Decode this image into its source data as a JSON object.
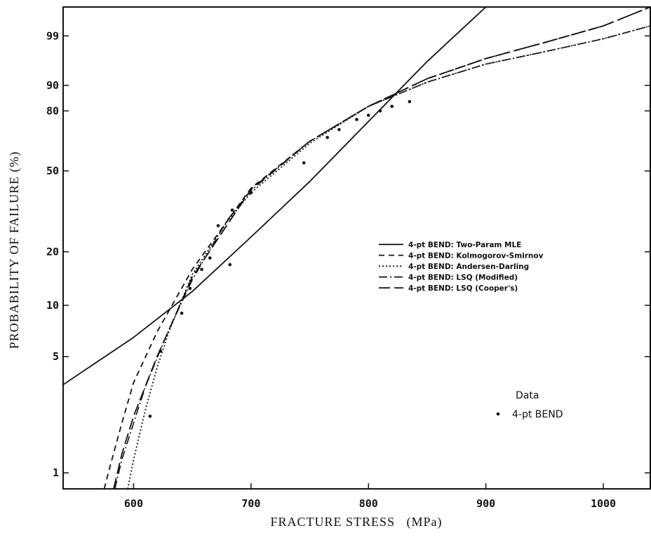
{
  "chart_data": {
    "type": "line",
    "title": "",
    "xlabel": "FRACTURE STRESS   (MPa)",
    "ylabel": "PROBABILITY OF FAILURE (%)",
    "xlim": [
      540,
      1040
    ],
    "ylim": [
      0.8,
      99.9
    ],
    "yscale": "weibull",
    "x_ticks": [
      600,
      700,
      800,
      900,
      1000
    ],
    "y_ticks": [
      1,
      5,
      10,
      20,
      50,
      80,
      90,
      99
    ],
    "y_tick_labels": [
      "1",
      "5",
      "10",
      "20",
      "50",
      "80",
      "90",
      "99"
    ],
    "grid": false,
    "legend_position": "center-right",
    "series": [
      {
        "name": "4-pt BEND: Two-Param MLE",
        "style": "solid",
        "x": [
          540,
          600,
          650,
          700,
          750,
          800,
          850,
          900,
          950
        ],
        "y": [
          3.4,
          6.5,
          12.0,
          24.0,
          45.0,
          75.0,
          96.0,
          99.9,
          99.95
        ]
      },
      {
        "name": "4-pt BEND: Kolmogorov-Smirnov",
        "style": "dashed",
        "x": [
          575,
          580,
          590,
          600,
          620,
          650,
          700,
          750,
          800,
          850,
          900,
          950,
          1000,
          1040
        ],
        "y": [
          0.8,
          1.1,
          2.0,
          3.5,
          7.0,
          16.0,
          42.0,
          65.0,
          82.0,
          92.0,
          96.5,
          98.5,
          99.5,
          99.9
        ]
      },
      {
        "name": "4-pt BEND: Andersen-Darling",
        "style": "dotted",
        "x": [
          595,
          600,
          610,
          620,
          630,
          650,
          680,
          700,
          750,
          800,
          850,
          900,
          950,
          1000,
          1040
        ],
        "y": [
          0.8,
          1.2,
          2.4,
          4.3,
          7.0,
          15.0,
          29.0,
          40.0,
          64.0,
          82.0,
          91.0,
          95.5,
          97.5,
          98.8,
          99.5
        ]
      },
      {
        "name": "4-pt BEND: LSQ (Modified)",
        "style": "dash-dot",
        "x": [
          584,
          590,
          600,
          610,
          620,
          630,
          650,
          680,
          700,
          750,
          800,
          850,
          900,
          950,
          1000,
          1040
        ],
        "y": [
          0.8,
          1.2,
          2.0,
          3.3,
          4.9,
          7.2,
          14.0,
          29.5,
          41.0,
          65.0,
          82.0,
          91.0,
          95.5,
          97.5,
          98.8,
          99.5
        ]
      },
      {
        "name": "4-pt BEND: LSQ (Cooper's)",
        "style": "long-dash",
        "x": [
          583,
          590,
          600,
          620,
          650,
          700,
          750,
          800,
          850,
          900,
          950,
          1000,
          1040
        ],
        "y": [
          0.8,
          1.3,
          2.2,
          5.0,
          14.5,
          41.5,
          65.0,
          82.0,
          92.0,
          96.5,
          98.5,
          99.5,
          99.9
        ]
      }
    ],
    "data_points": {
      "name": "4-pt BEND",
      "x": [
        614,
        623,
        641,
        648,
        658,
        665,
        672,
        682,
        684,
        700,
        745,
        765,
        775,
        790,
        800,
        810,
        820,
        835
      ],
      "y": [
        2.2,
        5.4,
        9.0,
        12.5,
        16.0,
        18.5,
        27.5,
        17.0,
        33.0,
        40.0,
        54.0,
        67.0,
        71.0,
        76.0,
        78.0,
        80.0,
        82.0,
        84.0
      ]
    },
    "data_legend_title": "Data"
  }
}
